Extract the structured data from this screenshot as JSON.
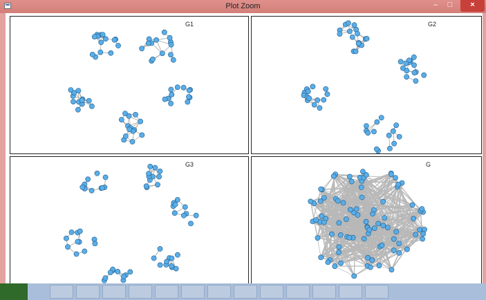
{
  "window": {
    "title": "Plot Zoom",
    "minimize": "–",
    "maximize": "□",
    "close": "×"
  },
  "panels": [
    {
      "label": "G1"
    },
    {
      "label": "G2"
    },
    {
      "label": "G3"
    },
    {
      "label": "G"
    }
  ],
  "colors": {
    "node_fill": "#5aaee8",
    "node_stroke": "#1f5a8a",
    "edge": "#9a9a9a",
    "dense_edge": "#b8b8b8",
    "titlebar": "#d9827d",
    "close": "#c7403a",
    "taskbar": "#a9beda"
  },
  "icons": [
    "app-icon",
    "minimize-icon",
    "maximize-icon",
    "close-icon"
  ]
}
